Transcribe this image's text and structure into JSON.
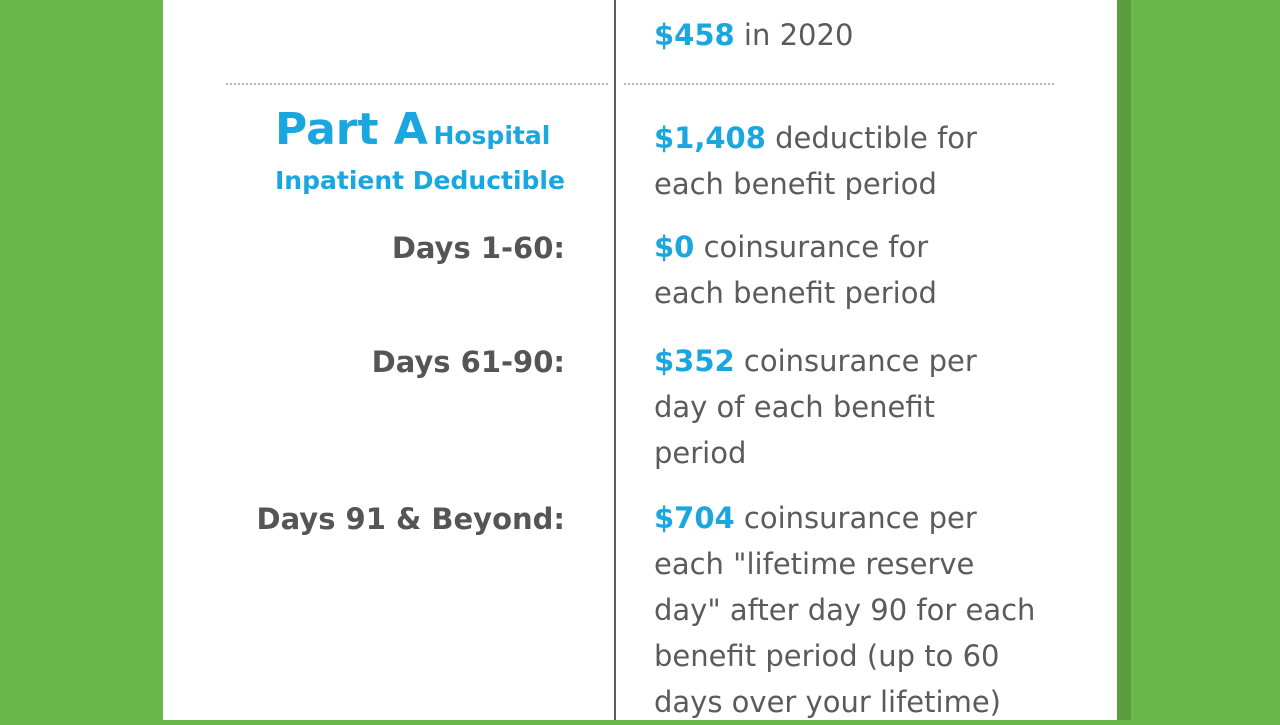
{
  "top_row": {
    "value_amount": "$458",
    "value_text": " in 2020"
  },
  "part_a": {
    "heading_big": "Part A",
    "heading_small": "Hospital",
    "heading_line2": "Inpatient Deductible",
    "deductible_amount": "$1,408",
    "deductible_text": " deductible for each benefit period"
  },
  "rows": [
    {
      "label": "Days 1-60:",
      "amount": "$0",
      "text": " coinsurance for each benefit period"
    },
    {
      "label": "Days 61-90:",
      "amount": "$352",
      "text": " coinsurance per day of each benefit period"
    },
    {
      "label": "Days 91 & Beyond:",
      "amount": "$704",
      "text": " coinsurance per each \"lifetime reserve day\" after day 90 for each benefit period (up to 60 days over your lifetime)"
    }
  ]
}
